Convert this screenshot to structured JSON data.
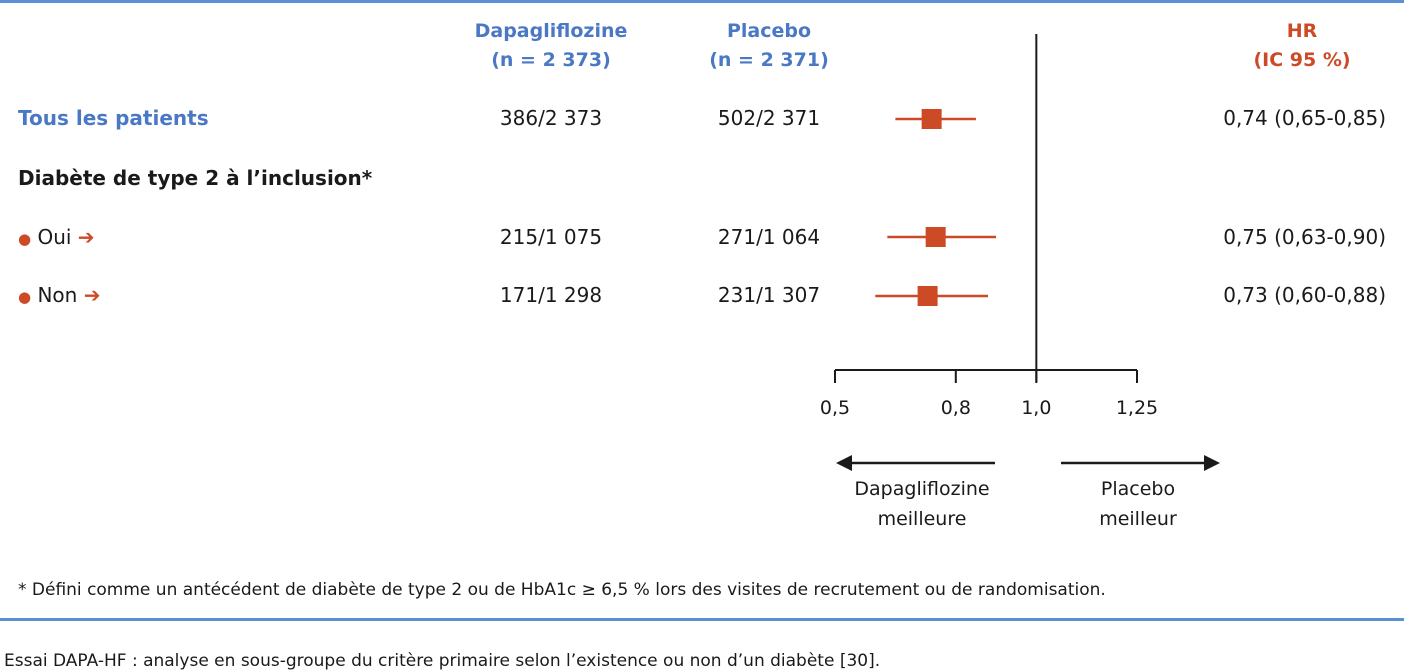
{
  "header": {
    "col_dapa_line1": "Dapagliflozine",
    "col_dapa_line2": "(n = 2 373)",
    "col_placebo_line1": "Placebo",
    "col_placebo_line2": "(n = 2 371)",
    "col_hr_line1": "HR",
    "col_hr_line2": "(IC 95 %)"
  },
  "rows": [
    {
      "label": "Tous les patients",
      "dapa": "386/2 373",
      "placebo": "502/2 371",
      "hr_text": "0,74 (0,65-0,85)"
    },
    {
      "label": "Diabète de type 2 à l’inclusion*"
    },
    {
      "bullet": "●",
      "label": "Oui",
      "arrow": "➔",
      "dapa": "215/1 075",
      "placebo": "271/1 064",
      "hr_text": "0,75 (0,63-0,90)"
    },
    {
      "bullet": "●",
      "label": "Non",
      "arrow": "➔",
      "dapa": "171/1 298",
      "placebo": "231/1 307",
      "hr_text": "0,73 (0,60-0,88)"
    }
  ],
  "direction": {
    "left_line1": "Dapagliflozine",
    "left_line2": "meilleure",
    "right_line1": "Placebo",
    "right_line2": "meilleur"
  },
  "footnote": "* Défini comme un antécédent de diabète de type 2 ou de HbA1c ≥ 6,5 % lors des visites de recrutement ou de randomisation.",
  "caption": "Essai DAPA-HF : analyse en sous-groupe du critère primaire selon l’existence ou non d’un diabète [30].",
  "colors": {
    "accent_blue": "#4a78c4",
    "accent_orange": "#cc4a26",
    "rule": "#5b8fd6"
  },
  "chart_data": {
    "type": "forest",
    "reference_line": 1.0,
    "ticks": [
      0.5,
      0.8,
      1.0,
      1.25
    ],
    "tick_labels": [
      "0,5",
      "0,8",
      "1,0",
      "1,25"
    ],
    "xlim": [
      0.5,
      1.25
    ],
    "series": [
      {
        "name": "Tous les patients",
        "hr": 0.74,
        "lo": 0.65,
        "hi": 0.85
      },
      {
        "name": "Oui",
        "hr": 0.75,
        "lo": 0.63,
        "hi": 0.9
      },
      {
        "name": "Non",
        "hr": 0.73,
        "lo": 0.6,
        "hi": 0.88
      }
    ]
  }
}
